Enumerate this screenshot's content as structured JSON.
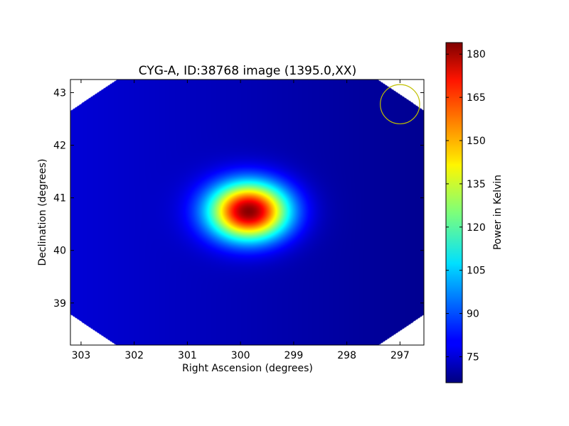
{
  "chart_data": {
    "type": "heatmap",
    "title": "CYG-A, ID:38768 image (1395.0,XX)",
    "xlabel": "Right Ascension (degrees)",
    "ylabel": "Declination (degrees)",
    "xlim": [
      303.2,
      296.55
    ],
    "ylim": [
      38.2,
      43.25
    ],
    "x_ticks": [
      303,
      302,
      301,
      300,
      299,
      298,
      297
    ],
    "y_ticks": [
      39,
      40,
      41,
      42,
      43
    ],
    "x_tick_labels": [
      "303",
      "302",
      "301",
      "300",
      "299",
      "298",
      "297"
    ],
    "y_tick_labels": [
      "39",
      "40",
      "41",
      "42",
      "43"
    ],
    "source": {
      "ra": 299.85,
      "dec": 40.75,
      "peak": 183,
      "sigma_ra": 0.52,
      "sigma_dec": 0.38
    },
    "background": {
      "value_east": 76,
      "value_west": 68
    },
    "beam_circle": {
      "ra": 297.0,
      "dec": 42.78,
      "radius_deg": 0.37,
      "color": "#bfbf00"
    },
    "colorbar": {
      "label": "Power in Kelvin",
      "vmin": 66,
      "vmax": 184,
      "ticks": [
        75,
        90,
        105,
        120,
        135,
        150,
        165,
        180
      ],
      "tick_labels": [
        "75",
        "90",
        "105",
        "120",
        "135",
        "150",
        "165",
        "180"
      ],
      "colormap": "jet"
    },
    "grid": false
  }
}
